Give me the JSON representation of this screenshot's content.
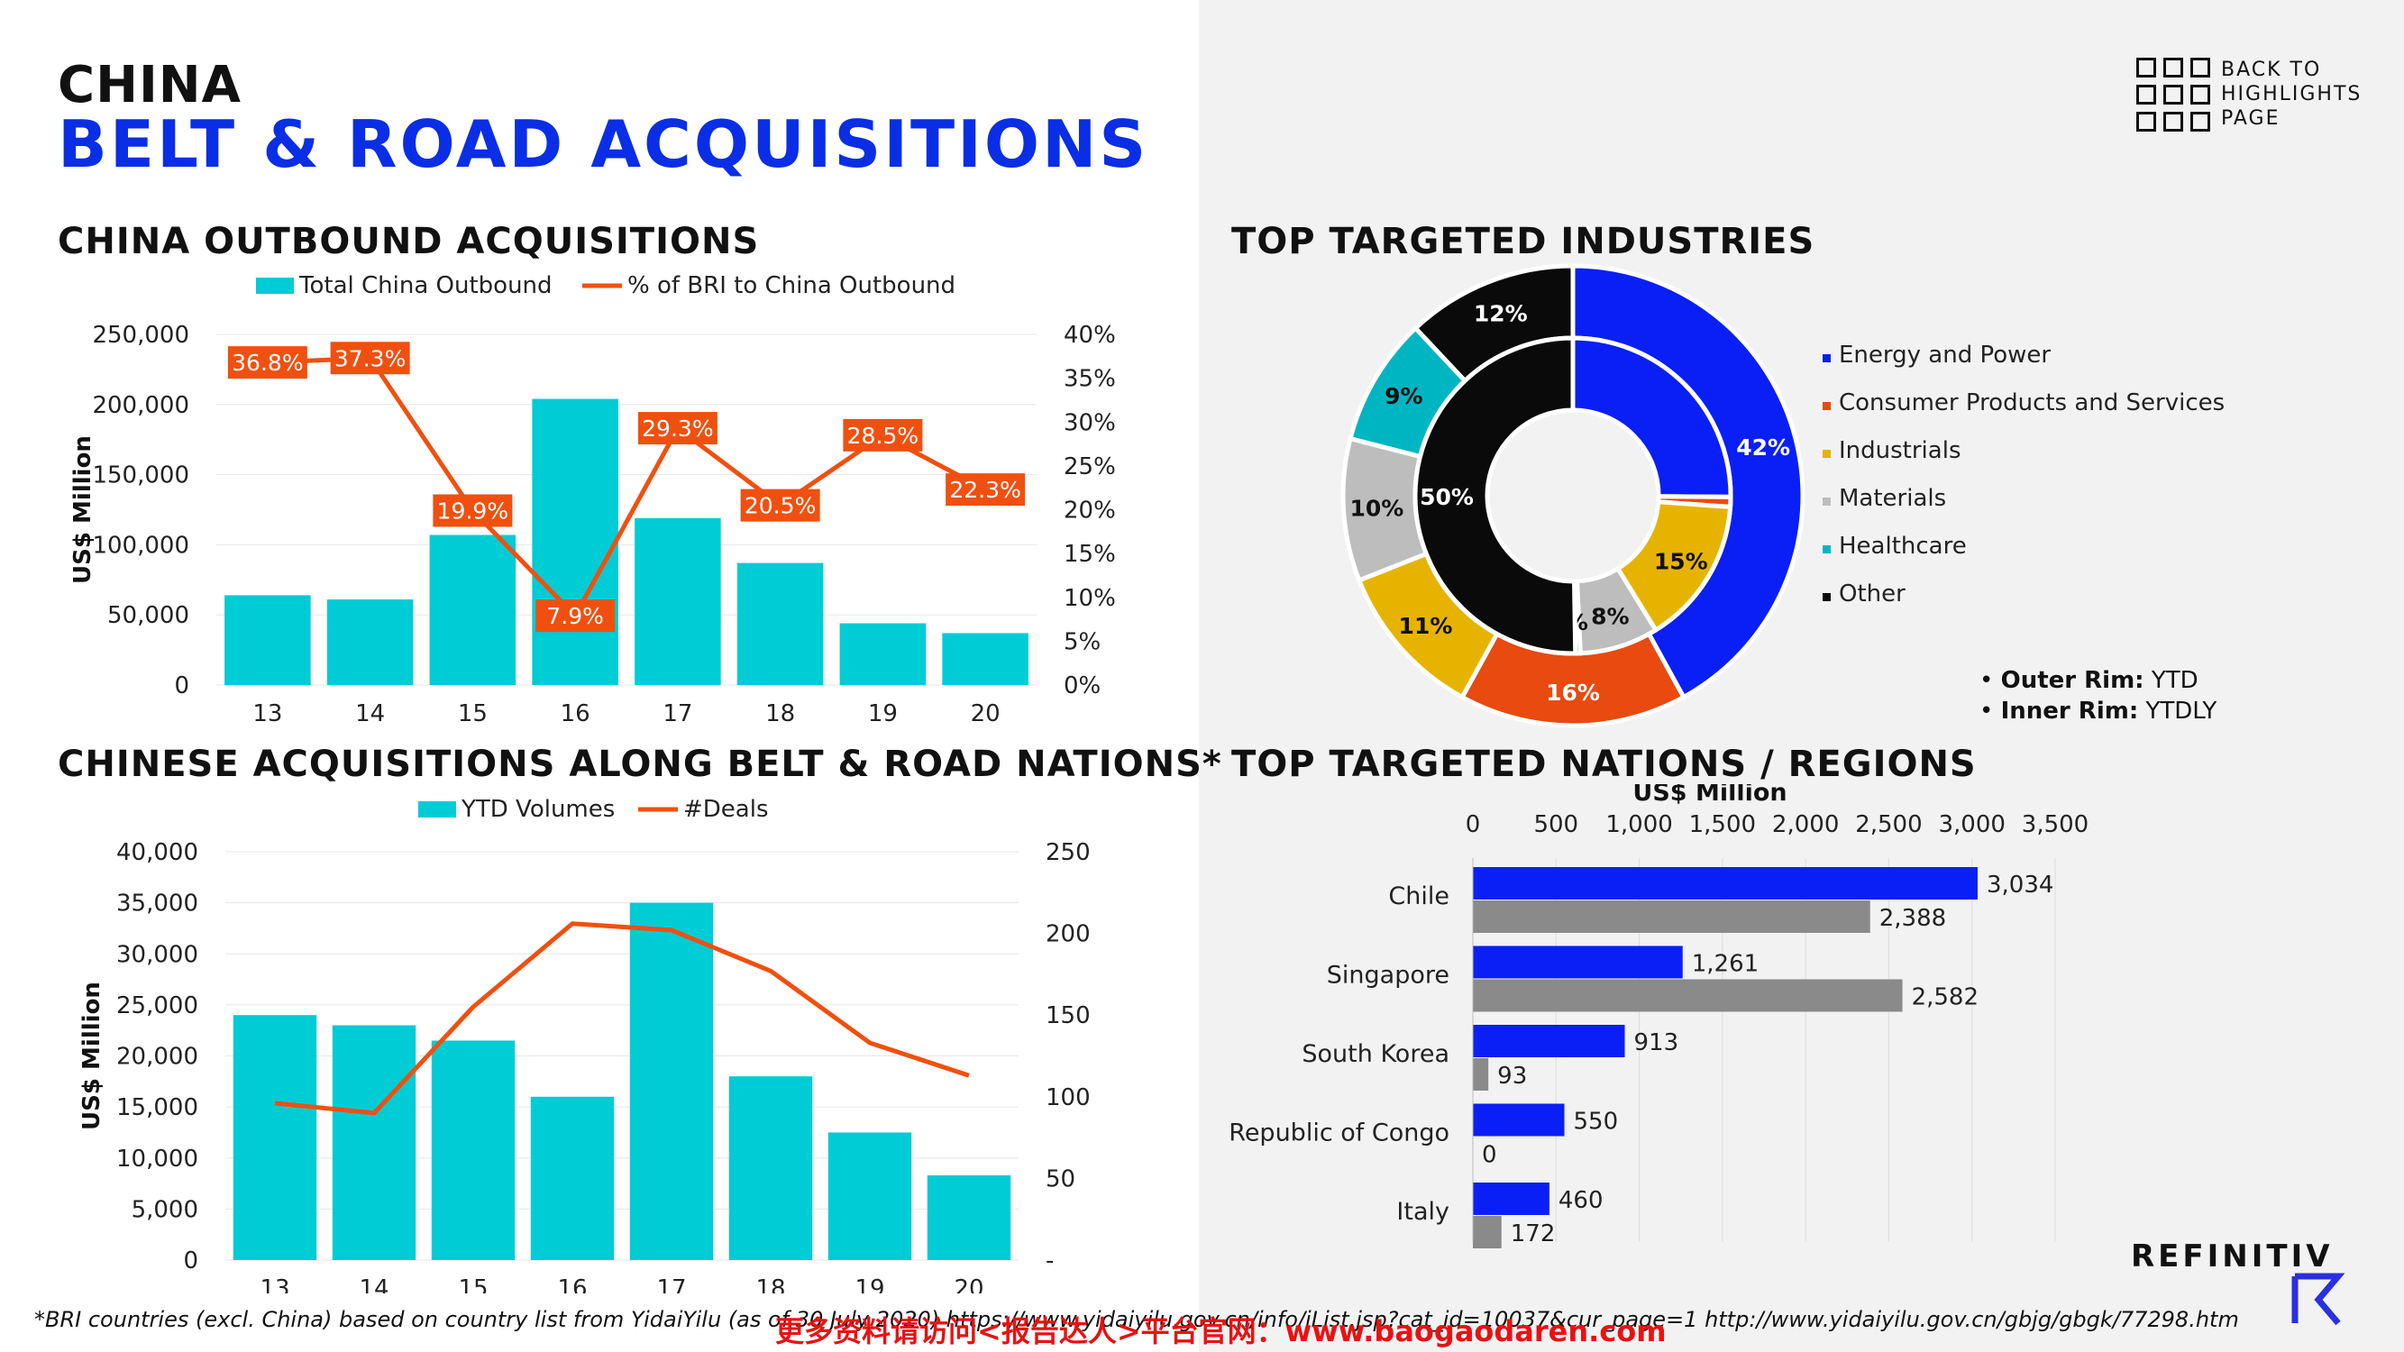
{
  "header": {
    "title_line1": "CHINA",
    "title_line2": "BELT & ROAD ACQUISITIONS",
    "back_link": [
      "BACK TO",
      "HIGHLIGHTS",
      "PAGE"
    ]
  },
  "sections": {
    "outbound": "CHINA OUTBOUND ACQUISITIONS",
    "belt_road": "CHINESE ACQUISITIONS ALONG BELT & ROAD NATIONS*",
    "industries": "TOP TARGETED INDUSTRIES",
    "nations": "TOP TARGETED NATIONS / REGIONS"
  },
  "rim_legend": {
    "outer_label": "Outer Rim:",
    "outer_value": "YTD",
    "inner_label": "Inner Rim:",
    "inner_value": "YTDLY"
  },
  "footnote": "*BRI countries (excl. China) based on country list from YidaiYilu (as of 30 July 2020) https://www.yidaiyilu.gov.cn/info/iList.jsp?cat_id=10037&cur_page=1  http://www.yidaiyilu.gov.cn/gbjg/gbgk/77298.htm",
  "watermark": "更多资料请访问<报告达人>平台官网：www.baogaodaren.com",
  "logo": "REFINITIV",
  "colors": {
    "cyan": "#00ccd6",
    "orange": "#f0500f",
    "blue": "#0a1ff5",
    "gray": "#8a8a8a",
    "energy": "#0a1ff5",
    "consumer": "#e84a10",
    "industrials": "#e6b400",
    "materials": "#bdbdbd",
    "healthcare": "#00b5c2",
    "other": "#0a0a0a"
  },
  "chart_data": [
    {
      "id": "outbound",
      "type": "bar+line",
      "categories": [
        "13",
        "14",
        "15",
        "16",
        "17",
        "18",
        "19",
        "20"
      ],
      "series": [
        {
          "name": "Total China Outbound",
          "type": "bar",
          "axis": "left",
          "values": [
            64000,
            61000,
            107000,
            204000,
            119000,
            87000,
            44000,
            37000
          ]
        },
        {
          "name": "% of BRI to China Outbound",
          "type": "line",
          "axis": "right",
          "values": [
            36.8,
            37.3,
            19.9,
            7.9,
            29.3,
            20.5,
            28.5,
            22.3
          ],
          "labels": [
            "36.8%",
            "37.3%",
            "19.9%",
            "7.9%",
            "29.3%",
            "20.5%",
            "28.5%",
            "22.3%"
          ]
        }
      ],
      "ylabel": "US$ Million",
      "ylim": [
        0,
        250000
      ],
      "yticks": [
        "0",
        "50,000",
        "100,000",
        "150,000",
        "200,000",
        "250,000"
      ],
      "y2lim": [
        0,
        40
      ],
      "y2ticks": [
        "0%",
        "5%",
        "10%",
        "15%",
        "20%",
        "25%",
        "30%",
        "35%",
        "40%"
      ],
      "legend": "top"
    },
    {
      "id": "belt_road",
      "type": "bar+line",
      "categories": [
        "13",
        "14",
        "15",
        "16",
        "17",
        "18",
        "19",
        "20"
      ],
      "series": [
        {
          "name": "YTD Volumes",
          "type": "bar",
          "axis": "left",
          "values": [
            24000,
            23000,
            21500,
            16000,
            35000,
            18000,
            12500,
            8300
          ]
        },
        {
          "name": "#Deals",
          "type": "line",
          "axis": "right",
          "values": [
            96,
            90,
            155,
            206,
            202,
            177,
            133,
            113
          ]
        }
      ],
      "ylabel": "US$ Million",
      "ylim": [
        0,
        40000
      ],
      "yticks": [
        "0",
        "5,000",
        "10,000",
        "15,000",
        "20,000",
        "25,000",
        "30,000",
        "35,000",
        "40,000"
      ],
      "y2lim": [
        0,
        250
      ],
      "y2ticks": [
        "-",
        "50",
        "100",
        "150",
        "200",
        "250"
      ],
      "legend": "top"
    },
    {
      "id": "industries",
      "type": "pie",
      "legend": "right",
      "categories": [
        "Energy and Power",
        "Consumer Products and Services",
        "Industrials",
        "Materials",
        "Healthcare",
        "Other"
      ],
      "series": [
        {
          "name": "Outer Rim: YTD",
          "values": [
            42,
            16,
            11,
            10,
            9,
            12
          ],
          "labels": [
            "42%",
            "16%",
            "11%",
            "10%",
            "9%",
            "12%"
          ]
        },
        {
          "name": "Inner Rim: YTDLY",
          "values": [
            25,
            1,
            15,
            8,
            0.5,
            50
          ],
          "labels": [
            "",
            "",
            "15%",
            "8%",
            "%",
            "50%"
          ]
        }
      ]
    },
    {
      "id": "nations",
      "type": "bar",
      "orientation": "horizontal",
      "xlabel": "US$ Million",
      "xlim": [
        0,
        3500
      ],
      "xticks": [
        "0",
        "500",
        "1,000",
        "1,500",
        "2,000",
        "2,500",
        "3,000",
        "3,500"
      ],
      "categories": [
        "Chile",
        "Singapore",
        "South Korea",
        "Republic of Congo",
        "Italy"
      ],
      "series": [
        {
          "values": [
            3034,
            1261,
            913,
            550,
            460
          ],
          "labels": [
            "3,034",
            "1,261",
            "913",
            "550",
            "460"
          ]
        },
        {
          "values": [
            2388,
            2582,
            93,
            0,
            172
          ],
          "labels": [
            "2,388",
            "2,582",
            "93",
            "0",
            "172"
          ]
        }
      ]
    }
  ]
}
